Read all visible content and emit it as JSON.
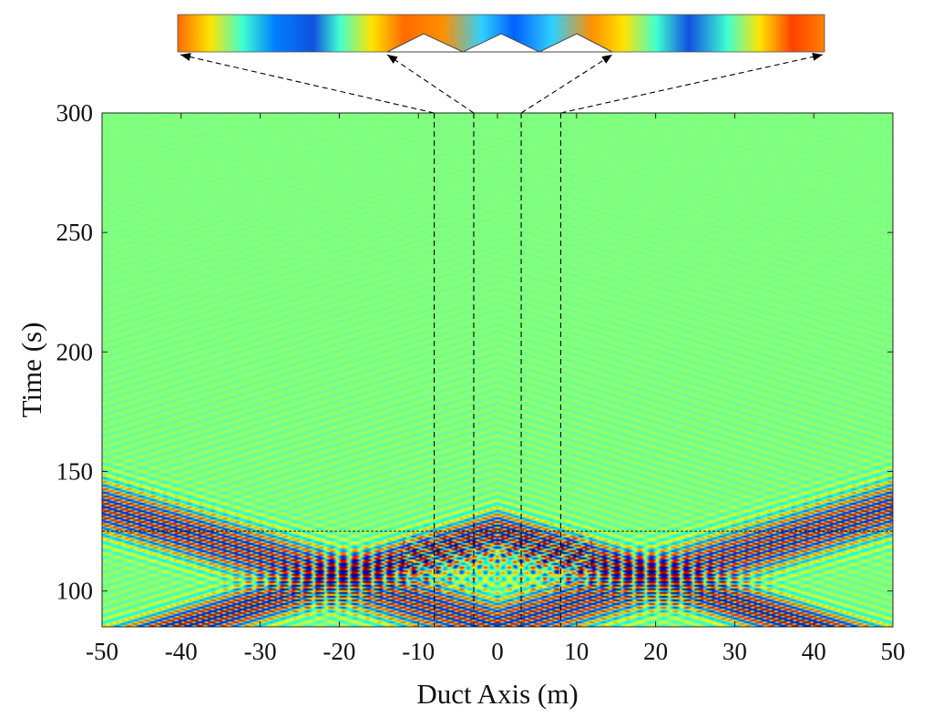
{
  "chart_data": {
    "type": "heatmap",
    "title": "",
    "xlabel": "Duct Axis (m)",
    "ylabel": "Time (s)",
    "xlim": [
      -50,
      50
    ],
    "ylim": [
      85,
      300
    ],
    "x_ticks": [
      "-50",
      "-40",
      "-30",
      "-20",
      "-10",
      "0",
      "10",
      "20",
      "30",
      "40",
      "50"
    ],
    "y_ticks": [
      "100",
      "150",
      "200",
      "250",
      "300"
    ],
    "x_tick_values": [
      -50,
      -40,
      -30,
      -20,
      -10,
      0,
      10,
      20,
      30,
      40,
      50
    ],
    "y_tick_values": [
      100,
      150,
      200,
      250,
      300
    ],
    "colormap": "jet",
    "grid": false,
    "legend": "none",
    "vertical_markers_x": [
      -8,
      -3,
      3,
      8
    ],
    "horizontal_marker_y": 125,
    "wave_packets": [
      {
        "direction": "leftward",
        "centered_at_x0_time": 125,
        "speed_m_per_s": 1.0,
        "wavelength_m": 3.0,
        "reflection": true
      },
      {
        "direction": "rightward",
        "centered_at_x0_time": 125,
        "speed_m_per_s": 1.0,
        "wavelength_m": 3.0,
        "reflection": true
      }
    ],
    "inset": {
      "description_type": "duct cross-section colour strip",
      "x_range": [
        -50,
        50
      ],
      "bumps_x": [
        -8,
        -3,
        3,
        8
      ]
    }
  },
  "colors": {
    "background": "#80f080",
    "dashed_line": "#000000",
    "jet_low": "#00008f",
    "jet_high": "#800000"
  }
}
